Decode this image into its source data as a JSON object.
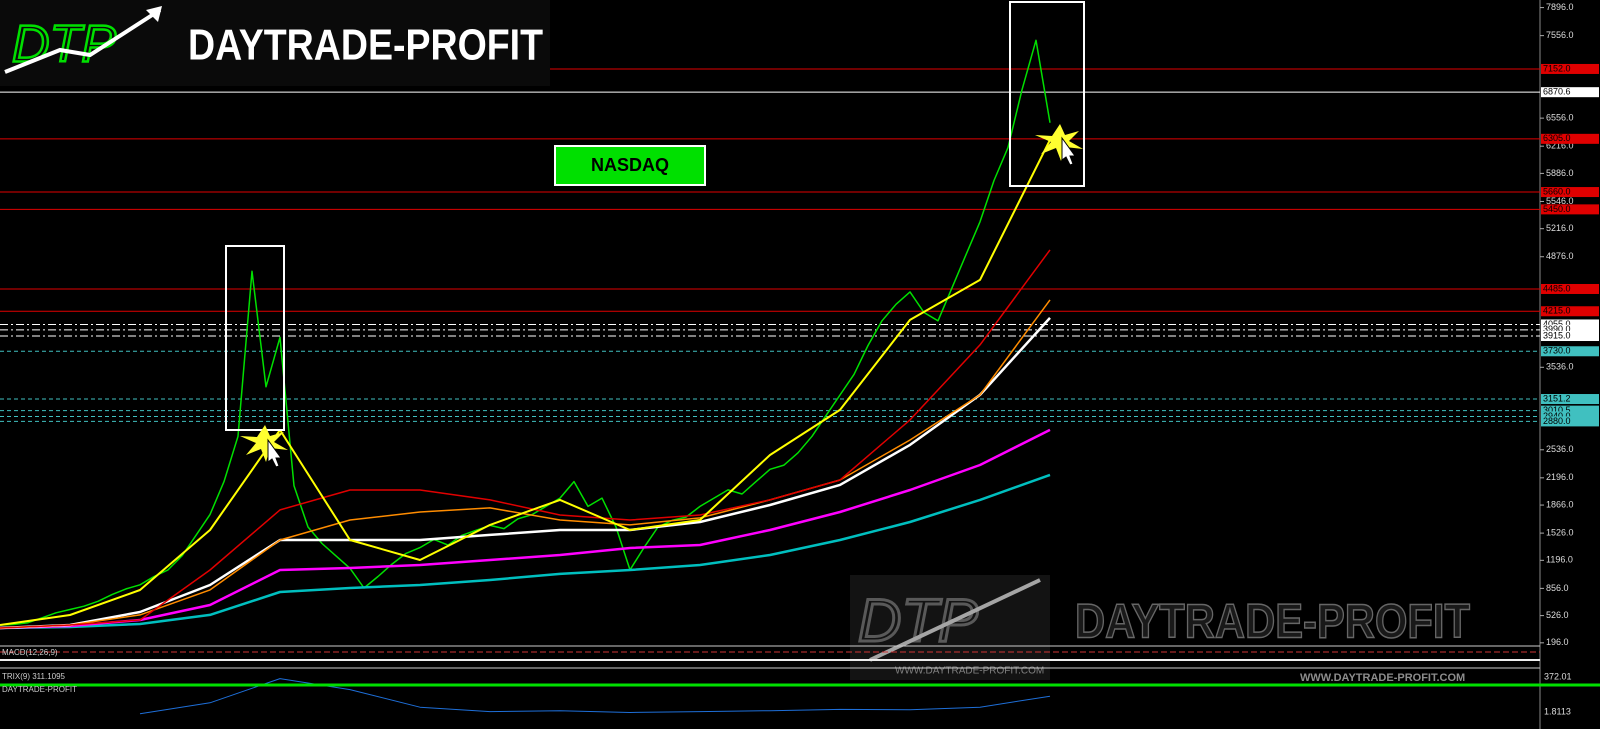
{
  "logo": {
    "mark": "DTP",
    "name": "DAYTRADE-PROFIT"
  },
  "watermark": {
    "mark": "DTP",
    "name": "DAYTRADE-PROFIT",
    "url": "WWW.DAYTRADE-PROFIT.COM"
  },
  "chart_data": [
    {
      "type": "line",
      "title": "NASDAQ",
      "ylim": [
        0,
        8000
      ],
      "yticks": [
        {
          "value": 7896,
          "label": "7896.0"
        },
        {
          "value": 7556,
          "label": "7556.0"
        },
        {
          "value": 6556,
          "label": "6556.0"
        },
        {
          "value": 6216,
          "label": "6216.0"
        },
        {
          "value": 5886,
          "label": "5886.0"
        },
        {
          "value": 5546,
          "label": "5546.0"
        },
        {
          "value": 5216,
          "label": "5216.0"
        },
        {
          "value": 4876,
          "label": "4876.0"
        },
        {
          "value": 3536,
          "label": "3536.0"
        },
        {
          "value": 2536,
          "label": "2536.0"
        },
        {
          "value": 2196,
          "label": "2196.0"
        },
        {
          "value": 1866,
          "label": "1866.0"
        },
        {
          "value": 1526,
          "label": "1526.0"
        },
        {
          "value": 1196,
          "label": "1196.0"
        },
        {
          "value": 856,
          "label": "856.0"
        },
        {
          "value": 526,
          "label": "526.0"
        },
        {
          "value": 196,
          "label": "196.0"
        }
      ],
      "levels": [
        {
          "value": 7152,
          "label": "7152.0",
          "color": "#e00000",
          "style": "solid"
        },
        {
          "value": 6870.6,
          "label": "6870.6",
          "color": "#ffffff",
          "style": "solid"
        },
        {
          "value": 6305,
          "label": "6305.0",
          "color": "#e00000",
          "style": "solid"
        },
        {
          "value": 5660,
          "label": "5660.0",
          "color": "#e00000",
          "style": "solid"
        },
        {
          "value": 5450,
          "label": "5450.0",
          "color": "#e00000",
          "style": "solid"
        },
        {
          "value": 4485,
          "label": "4485.0",
          "color": "#e00000",
          "style": "solid"
        },
        {
          "value": 4215,
          "label": "4215.0",
          "color": "#e00000",
          "style": "solid"
        },
        {
          "value": 4055,
          "label": "4055.0",
          "color": "#ffffff",
          "style": "dashdot"
        },
        {
          "value": 3990,
          "label": "3990.0",
          "color": "#ffffff",
          "style": "dashdot"
        },
        {
          "value": 3915,
          "label": "3915.0",
          "color": "#ffffff",
          "style": "dashdot"
        },
        {
          "value": 3730,
          "label": "3730.0",
          "color": "#40c0c0",
          "style": "dashed"
        },
        {
          "value": 3151.2,
          "label": "3151.2",
          "color": "#40c0c0",
          "style": "dashed"
        },
        {
          "value": 3010.5,
          "label": "3010.5",
          "color": "#40c0c0",
          "style": "dashed"
        },
        {
          "value": 2940,
          "label": "2940.0",
          "color": "#40c0c0",
          "style": "dashed"
        },
        {
          "value": 2880,
          "label": "2880.0",
          "color": "#40c0c0",
          "style": "dashed"
        }
      ],
      "series": [
        {
          "color": "#00e000",
          "width": 1.5,
          "values": [
            412,
            420,
            440,
            500,
            560,
            600,
            640,
            700,
            780,
            850,
            900,
            1000,
            1080,
            1250,
            1500,
            1750,
            2150,
            2700,
            4700,
            3300,
            3900,
            2100,
            1600,
            1400,
            1250,
            1100,
            860,
            1000,
            1150,
            1280,
            1350,
            1450,
            1380,
            1500,
            1560,
            1620,
            1580,
            1700,
            1750,
            1850,
            1950,
            2150,
            1850,
            1950,
            1600,
            1080,
            1350,
            1600,
            1680,
            1720,
            1850,
            1950,
            2050,
            2000,
            2150,
            2300,
            2350,
            2500,
            2700,
            2950,
            3200,
            3450,
            3800,
            4100,
            4300,
            4450,
            4200,
            4100,
            4500,
            4900,
            5300,
            5800,
            6200,
            6900,
            7500,
            6500
          ]
        },
        {
          "color": "#00bfbf",
          "width": 2.5,
          "values": [
            376,
            388,
            424,
            534,
            812,
            861,
            897,
            958,
            1031,
            1079,
            1140,
            1261,
            1443,
            1661,
            1928,
            2231
          ]
        },
        {
          "color": "#ff00ff",
          "width": 2.5,
          "values": [
            376,
            400,
            473,
            655,
            1079,
            1103,
            1140,
            1200,
            1261,
            1346,
            1382,
            1564,
            1782,
            2049,
            2352,
            2777
          ]
        },
        {
          "color": "#ffffff",
          "width": 2.5,
          "values": [
            376,
            412,
            570,
            897,
            1443,
            1443,
            1443,
            1504,
            1564,
            1564,
            1661,
            1867,
            2110,
            2595,
            3201,
            4135
          ]
        },
        {
          "color": "#ff8c00",
          "width": 1.5,
          "values": [
            376,
            412,
            534,
            837,
            1443,
            1685,
            1782,
            1831,
            1685,
            1625,
            1710,
            1928,
            2170,
            2655,
            3201,
            4353
          ]
        },
        {
          "color": "#e00000",
          "width": 1.5,
          "values": [
            376,
            412,
            473,
            1079,
            1807,
            2049,
            2049,
            1928,
            1746,
            1685,
            1746,
            1928,
            2170,
            2898,
            3807,
            4959
          ]
        },
        {
          "color": "#ffff00",
          "width": 2,
          "values": [
            412,
            533,
            836,
            1564,
            2776,
            1443,
            1200,
            1625,
            1928,
            1564,
            1685,
            2473,
            3019,
            4110,
            4595,
            6293
          ]
        }
      ]
    },
    {
      "type": "line",
      "label": "TRIX(9) 311.1095",
      "name": "DAYTRADE-PROFIT",
      "macd_label": "MACD(12,26,9)",
      "right_labels": [
        "372.01",
        "1.8113"
      ],
      "ylim": [
        0,
        100
      ],
      "series": [
        {
          "color": "#1e6fd9",
          "width": 1,
          "values": [
            null,
            null,
            5,
            30,
            85,
            60,
            20,
            10,
            12,
            8,
            10,
            12,
            15,
            14,
            20,
            45
          ]
        }
      ]
    }
  ]
}
